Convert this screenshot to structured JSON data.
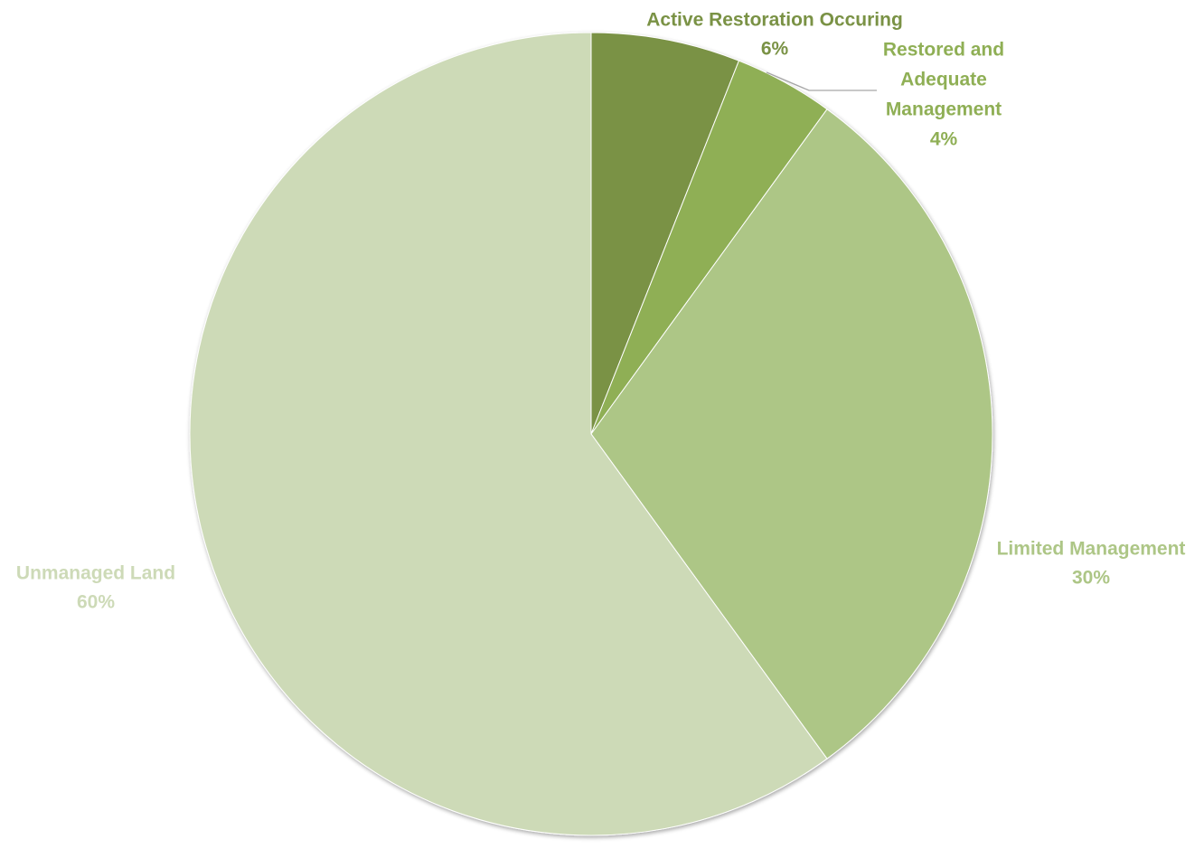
{
  "chart_data": {
    "type": "pie",
    "title": "",
    "start_angle_deg": 0,
    "direction": "clockwise",
    "slices": [
      {
        "label": "Active Restoration Occuring",
        "label_lines": [
          "Active Restoration Occuring"
        ],
        "value": 6,
        "value_label": "6%",
        "color": "#7a9245",
        "label_color": "#7a9245"
      },
      {
        "label": "Restored and Adequate Management",
        "label_lines": [
          "Restored and",
          "Adequate",
          "Management"
        ],
        "value": 4,
        "value_label": "4%",
        "color": "#8faf55",
        "label_color": "#8faf55"
      },
      {
        "label": "Limited Management",
        "label_lines": [
          "Limited Management"
        ],
        "value": 30,
        "value_label": "30%",
        "color": "#adc686",
        "label_color": "#adc686"
      },
      {
        "label": "Unmanaged Land",
        "label_lines": [
          "Unmanaged Land"
        ],
        "value": 60,
        "value_label": "60%",
        "color": "#cddab7",
        "label_color": "#cddab7"
      }
    ]
  }
}
